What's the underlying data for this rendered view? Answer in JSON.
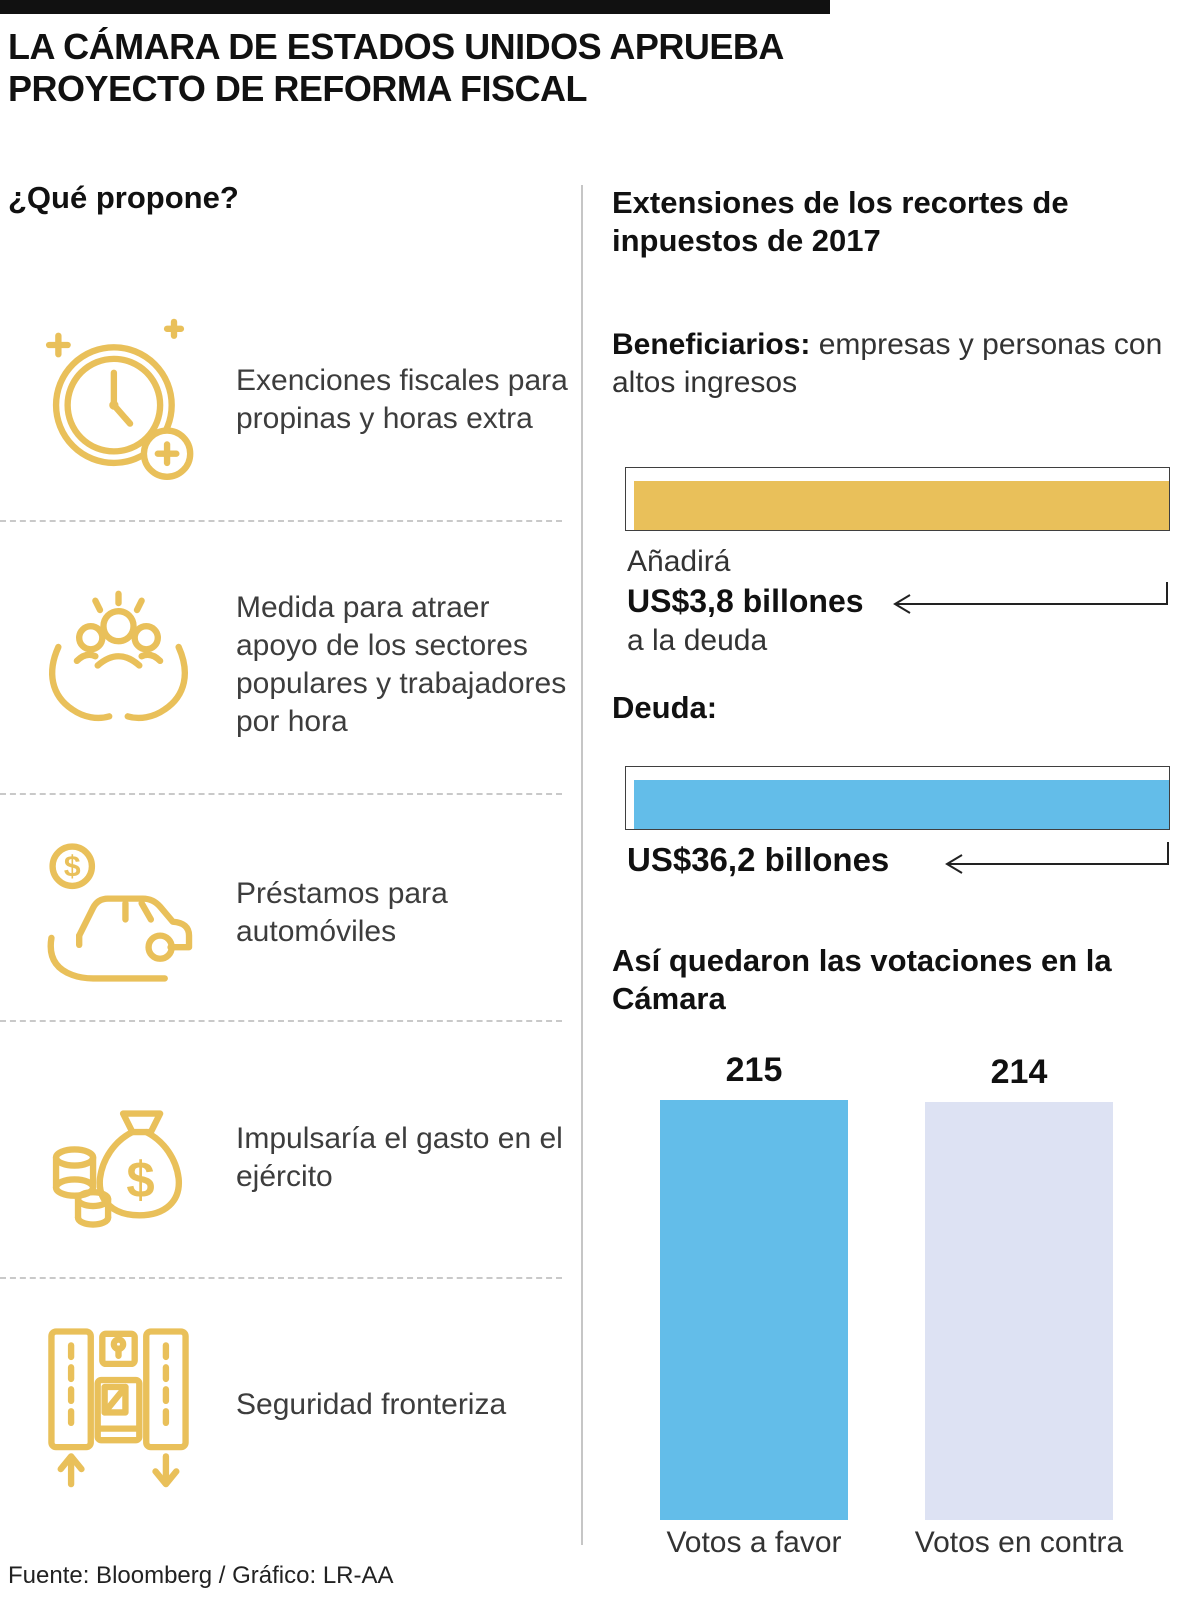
{
  "header": {
    "title_line1": "LA CÁMARA DE ESTADOS UNIDOS APRUEBA",
    "title_line2": "PROYECTO DE REFORMA FISCAL"
  },
  "left": {
    "heading": "¿Qué propone?",
    "items": [
      {
        "icon": "clock-sparkle-icon",
        "text": "Exenciones fiscales para propinas y horas extra"
      },
      {
        "icon": "hands-holding-people-icon",
        "text": "Medida para atraer apoyo de los sectores populares y trabajadores por hora"
      },
      {
        "icon": "car-loan-icon",
        "text": "Préstamos para automóviles"
      },
      {
        "icon": "money-bag-icon",
        "text": "Impulsaría el gasto en el ejército"
      },
      {
        "icon": "border-security-icon",
        "text": "Seguridad fronteriza"
      }
    ]
  },
  "right": {
    "heading": "Extensiones de los recortes de inpuestos de 2017",
    "beneficiaries": {
      "label": "Beneficiarios:",
      "text": " empresas y personas con altos ingresos"
    },
    "debt_add": {
      "pre": "Añadirá",
      "amount": "US$3,8 billones",
      "post": "a la deuda"
    },
    "debt_label": "Deuda:",
    "debt_total_amount": "US$36,2 billones",
    "votes_heading": "Así quedaron las votaciones en la Cámara"
  },
  "footer": {
    "source": "Fuente: Bloomberg / Gráfico: LR-AA"
  },
  "colors": {
    "gold": "#E9C05A",
    "blue": "#63BDE9",
    "lavender": "#DDE2F3",
    "ink": "#111111"
  },
  "chart_data": [
    {
      "type": "bar",
      "orientation": "horizontal",
      "title": "Extensiones de los recortes de inpuestos de 2017",
      "annotation": "Añadirá US$3,8 billones a la deuda",
      "values": [
        3.8
      ],
      "unit": "US$ billones",
      "color": "#E9C05A"
    },
    {
      "type": "bar",
      "orientation": "horizontal",
      "title": "Deuda",
      "annotation": "US$36,2 billones",
      "values": [
        36.2
      ],
      "unit": "US$ billones",
      "color": "#63BDE9"
    },
    {
      "type": "bar",
      "title": "Así quedaron las votaciones en la Cámara",
      "categories": [
        "Votos a favor",
        "Votos en contra"
      ],
      "values": [
        215,
        214
      ],
      "colors": [
        "#63BDE9",
        "#DDE2F3"
      ],
      "ylim": [
        0,
        215
      ],
      "grid": false,
      "legend": false
    }
  ]
}
